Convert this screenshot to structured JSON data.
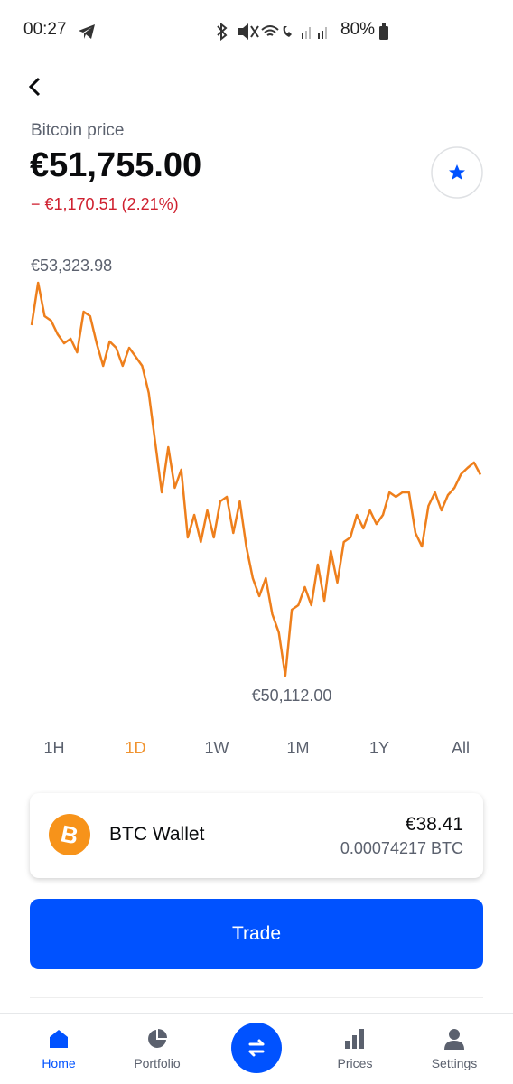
{
  "status_bar": {
    "time": "00:27",
    "battery": "80%"
  },
  "header": {
    "title": "Bitcoin price",
    "price": "€51,755.00",
    "change": "− €1,170.51 (2.21%)"
  },
  "chart_data": {
    "type": "line",
    "color": "#ee7f1c",
    "max_label": "€53,323.98",
    "min_label": "€50,112.00",
    "ylim": [
      50112.0,
      53323.98
    ],
    "values": [
      52977,
      53324,
      53051,
      53014,
      52903,
      52829,
      52866,
      52755,
      53088,
      53051,
      52829,
      52645,
      52844,
      52792,
      52645,
      52792,
      52719,
      52645,
      52423,
      52017,
      51611,
      51980,
      51648,
      51796,
      51242,
      51426,
      51205,
      51463,
      51242,
      51537,
      51574,
      51279,
      51537,
      51168,
      50909,
      50762,
      50909,
      50614,
      50466,
      50112,
      50651,
      50688,
      50836,
      50688,
      51020,
      50725,
      51131,
      50873,
      51205,
      51242,
      51426,
      51316,
      51463,
      51352,
      51426,
      51611,
      51574,
      51611,
      51611,
      51279,
      51168,
      51500,
      51611,
      51463,
      51589,
      51648,
      51759,
      51810,
      51855,
      51755
    ]
  },
  "ranges": [
    "1H",
    "1D",
    "1W",
    "1M",
    "1Y",
    "All"
  ],
  "wallet": {
    "name": "BTC Wallet",
    "fiat": "€38.41",
    "crypto": "0.00074217 BTC"
  },
  "button": "Trade",
  "nav": [
    "Home",
    "Portfolio",
    "Prices",
    "Settings"
  ]
}
